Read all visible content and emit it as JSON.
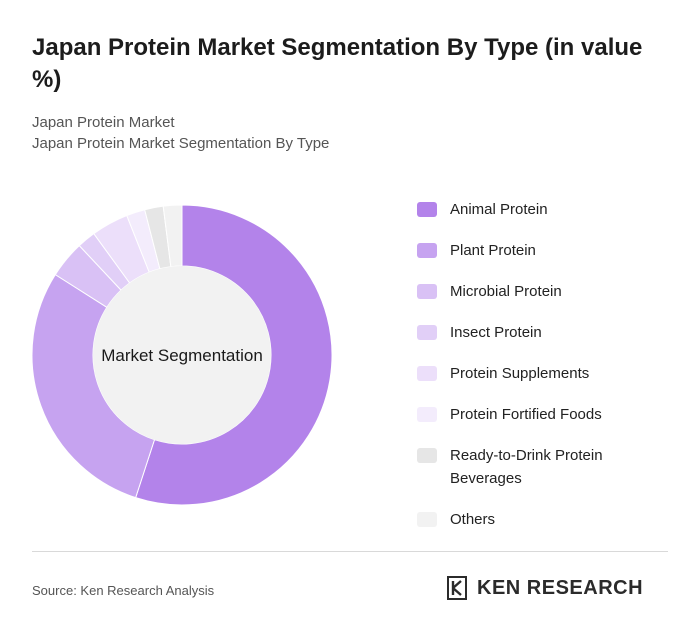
{
  "header": {
    "title": "Japan Protein Market Segmentation By Type (in value %)",
    "subtitle_1": "Japan Protein Market",
    "subtitle_2": "Japan Protein Market Segmentation By Type"
  },
  "chart_data": {
    "type": "pie",
    "center_label": "Market Segmentation",
    "categories": [
      "Animal Protein",
      "Plant Protein",
      "Microbial Protein",
      "Insect Protein",
      "Protein Supplements",
      "Protein Fortified Foods",
      "Ready-to-Drink Protein Beverages",
      "Others"
    ],
    "values": [
      55,
      29,
      4,
      2,
      4,
      2,
      2,
      2
    ],
    "colors": [
      "#b383ea",
      "#c6a3f0",
      "#d9c1f5",
      "#e1cff7",
      "#ecdffa",
      "#f3ecfc",
      "#e6e6e6",
      "#f2f2f2"
    ],
    "legend_position": "right"
  },
  "footer": {
    "source": "Source: Ken Research Analysis",
    "brand": "KEN RESEARCH"
  }
}
